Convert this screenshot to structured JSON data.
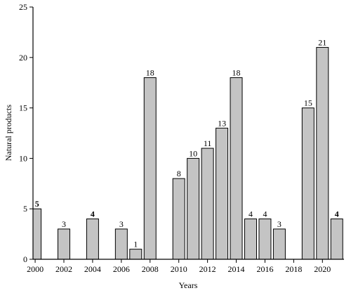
{
  "chart_data": {
    "type": "bar",
    "xlabel": "Years",
    "ylabel": "Natural products",
    "ylim": [
      0,
      25
    ],
    "yticks": [
      0,
      5,
      10,
      15,
      20,
      25
    ],
    "xlim": [
      1999.85,
      2021.5
    ],
    "xticks": [
      2000,
      2002,
      2004,
      2006,
      2008,
      2010,
      2012,
      2014,
      2016,
      2018,
      2020
    ],
    "x": [
      2000,
      2002,
      2004,
      2006,
      2007,
      2008,
      2010,
      2011,
      2012,
      2013,
      2014,
      2015,
      2016,
      2017,
      2019,
      2020,
      2021
    ],
    "values": [
      5,
      3,
      4,
      3,
      1,
      18,
      8,
      10,
      11,
      13,
      18,
      4,
      4,
      3,
      15,
      21,
      4
    ],
    "data_labels": [
      "5",
      "3",
      "4",
      "3",
      "1",
      "18",
      "8",
      "10",
      "11",
      "13",
      "18",
      "4",
      "4",
      "3",
      "15",
      "21",
      "4"
    ],
    "bold_labels": [
      "5",
      "4",
      "4"
    ],
    "grid": false,
    "legend": "none"
  }
}
